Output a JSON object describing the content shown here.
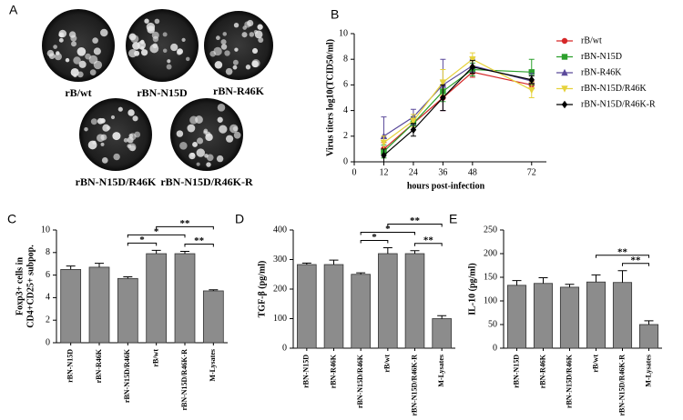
{
  "plaques": {
    "panel": "A",
    "captions": [
      "rB/wt",
      "rBN-N15D",
      "rBN-R46K",
      "rBN-N15D/R46K",
      "rBN-N15D/R46K-R"
    ]
  },
  "chart_data": [
    {
      "type": "line",
      "panel": "B",
      "xlabel": "hours post-infection",
      "ylabel": "Virus titers log10(TCID50/ml)",
      "x": [
        12,
        24,
        36,
        48,
        72
      ],
      "xlim": [
        0,
        78
      ],
      "xticks": [
        0,
        12,
        24,
        36,
        48,
        72
      ],
      "ylim": [
        0,
        10
      ],
      "yticks": [
        0,
        2,
        4,
        6,
        8,
        10
      ],
      "series": [
        {
          "name": "rB/wt",
          "color": "#d62728",
          "marker": "circle",
          "values": [
            1.0,
            3.0,
            5.0,
            7.0,
            6.0
          ],
          "errors": [
            0.5,
            0.5,
            1.0,
            0.4,
            0.3
          ]
        },
        {
          "name": "rBN-N15D",
          "color": "#2ca02c",
          "marker": "square",
          "values": [
            0.8,
            3.0,
            5.5,
            7.2,
            7.0
          ],
          "errors": [
            0.5,
            0.5,
            0.8,
            0.5,
            1.0
          ]
        },
        {
          "name": "rBN-R46K",
          "color": "#5b4a9b",
          "marker": "triangle",
          "values": [
            2.0,
            3.5,
            6.0,
            7.5,
            6.3
          ],
          "errors": [
            1.5,
            0.6,
            2.0,
            0.5,
            0.6
          ]
        },
        {
          "name": "rBN-N15D/R46K",
          "color": "#e6d23c",
          "marker": "triangle-down",
          "values": [
            1.5,
            3.2,
            6.2,
            8.0,
            5.6
          ],
          "errors": [
            0.5,
            0.5,
            1.0,
            0.5,
            0.6
          ]
        },
        {
          "name": "rBN-N15D/R46K-R",
          "color": "#000000",
          "marker": "diamond",
          "values": [
            0.5,
            2.5,
            5.0,
            7.4,
            6.4
          ],
          "errors": [
            0.5,
            0.5,
            1.0,
            0.5,
            0.3
          ]
        }
      ]
    },
    {
      "type": "bar",
      "panel": "C",
      "ylabel": [
        "Foxp3+ cells in",
        "CD4+CD25+ subpop."
      ],
      "color": "#8c8c8c",
      "categories": [
        "rBN-N15D",
        "rBN-R46K",
        "rBN-N15D/R46K",
        "rB/wt",
        "rBN-N15D/R46K-R",
        "M-Lysates"
      ],
      "values": [
        6.5,
        6.7,
        5.7,
        7.9,
        7.9,
        4.6
      ],
      "errors": [
        0.3,
        0.35,
        0.15,
        0.3,
        0.2,
        0.1
      ],
      "ylim": [
        0,
        10
      ],
      "yticks": [
        0,
        2,
        4,
        6,
        8,
        10
      ],
      "significance": [
        {
          "from": 2,
          "to": 3,
          "label": "*"
        },
        {
          "from": 4,
          "to": 5,
          "label": "**"
        },
        {
          "from": 2,
          "to": 4,
          "label": "*"
        },
        {
          "from": 3,
          "to": 5,
          "label": "**"
        }
      ]
    },
    {
      "type": "bar",
      "panel": "D",
      "ylabel": [
        "TGF-β (pg/ml)"
      ],
      "color": "#8c8c8c",
      "categories": [
        "rBN-N15D",
        "rBN-R46K",
        "rBN-N15D/R46K",
        "rB/wt",
        "rBN-N15D/R46K-R",
        "M-Lysates"
      ],
      "values": [
        283,
        283,
        250,
        320,
        320,
        100
      ],
      "errors": [
        5,
        15,
        5,
        20,
        10,
        10
      ],
      "ylim": [
        0,
        400
      ],
      "yticks": [
        0,
        100,
        200,
        300,
        400
      ],
      "significance": [
        {
          "from": 2,
          "to": 3,
          "label": "*"
        },
        {
          "from": 4,
          "to": 5,
          "label": "**"
        },
        {
          "from": 2,
          "to": 4,
          "label": "*"
        },
        {
          "from": 3,
          "to": 5,
          "label": "**"
        }
      ]
    },
    {
      "type": "bar",
      "panel": "E",
      "ylabel": [
        "IL-10 (pg/ml)"
      ],
      "color": "#8c8c8c",
      "categories": [
        "rBN-N15D",
        "rBN-R46K",
        "rBN-N15D/R46K",
        "rB/wt",
        "rBN-N15D/R46K-R",
        "M-Lysates"
      ],
      "values": [
        133,
        137,
        129,
        140,
        139,
        50
      ],
      "errors": [
        10,
        12,
        6,
        15,
        25,
        8
      ],
      "ylim": [
        0,
        250
      ],
      "yticks": [
        0,
        50,
        100,
        150,
        200,
        250
      ],
      "significance": [
        {
          "from": 4,
          "to": 5,
          "label": "**"
        },
        {
          "from": 3,
          "to": 5,
          "label": "**"
        }
      ]
    }
  ]
}
